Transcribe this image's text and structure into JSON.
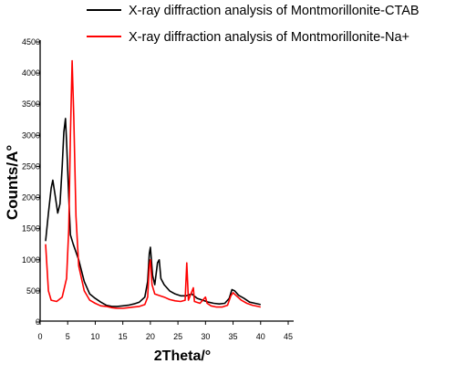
{
  "chart_data": {
    "type": "line",
    "xlabel": "2Theta/°",
    "ylabel": "Counts/A°",
    "xlim": [
      0,
      45
    ],
    "ylim": [
      0,
      4500
    ],
    "x_ticks": [
      0,
      5,
      10,
      15,
      20,
      25,
      30,
      35,
      40,
      45
    ],
    "y_ticks": [
      0,
      500,
      1000,
      1500,
      2000,
      2500,
      3000,
      3500,
      4000,
      4500
    ],
    "grid": false,
    "legend_placement": "top-right",
    "series": [
      {
        "name": "X-ray diffraction analysis of Montmorillonite-CTAB",
        "color": "#000000",
        "points": [
          [
            1.0,
            1300
          ],
          [
            1.5,
            1750
          ],
          [
            2.0,
            2150
          ],
          [
            2.3,
            2280
          ],
          [
            2.7,
            2050
          ],
          [
            3.2,
            1750
          ],
          [
            3.6,
            1900
          ],
          [
            4.0,
            2500
          ],
          [
            4.3,
            3050
          ],
          [
            4.6,
            3270
          ],
          [
            4.8,
            2900
          ],
          [
            5.2,
            2000
          ],
          [
            5.5,
            1400
          ],
          [
            6.0,
            1250
          ],
          [
            7.0,
            1000
          ],
          [
            8.0,
            650
          ],
          [
            9.0,
            450
          ],
          [
            10.0,
            380
          ],
          [
            11.0,
            320
          ],
          [
            12.0,
            270
          ],
          [
            13.0,
            250
          ],
          [
            14.0,
            250
          ],
          [
            15.0,
            260
          ],
          [
            16.0,
            270
          ],
          [
            17.0,
            290
          ],
          [
            18.0,
            320
          ],
          [
            19.0,
            400
          ],
          [
            19.5,
            650
          ],
          [
            19.8,
            1100
          ],
          [
            20.0,
            1200
          ],
          [
            20.4,
            750
          ],
          [
            20.8,
            600
          ],
          [
            21.3,
            950
          ],
          [
            21.6,
            1000
          ],
          [
            21.9,
            700
          ],
          [
            22.5,
            600
          ],
          [
            23.5,
            500
          ],
          [
            24.5,
            450
          ],
          [
            25.5,
            420
          ],
          [
            26.5,
            420
          ],
          [
            27.5,
            450
          ],
          [
            28.5,
            380
          ],
          [
            29.5,
            350
          ],
          [
            30.5,
            320
          ],
          [
            31.5,
            300
          ],
          [
            32.5,
            290
          ],
          [
            33.5,
            300
          ],
          [
            34.3,
            380
          ],
          [
            34.8,
            520
          ],
          [
            35.3,
            500
          ],
          [
            36.0,
            430
          ],
          [
            37.0,
            380
          ],
          [
            38.0,
            320
          ],
          [
            39.0,
            300
          ],
          [
            40.0,
            280
          ]
        ]
      },
      {
        "name": "X-ray diffraction analysis of Montmorillonite-Na+",
        "color": "#ff0000",
        "points": [
          [
            1.0,
            1250
          ],
          [
            1.5,
            500
          ],
          [
            2.0,
            350
          ],
          [
            3.0,
            330
          ],
          [
            4.0,
            400
          ],
          [
            4.8,
            700
          ],
          [
            5.2,
            1500
          ],
          [
            5.5,
            3000
          ],
          [
            5.8,
            4200
          ],
          [
            6.1,
            3300
          ],
          [
            6.5,
            1700
          ],
          [
            7.0,
            900
          ],
          [
            8.0,
            500
          ],
          [
            9.0,
            350
          ],
          [
            10.0,
            300
          ],
          [
            11.0,
            260
          ],
          [
            12.0,
            250
          ],
          [
            13.0,
            230
          ],
          [
            14.0,
            220
          ],
          [
            15.0,
            220
          ],
          [
            16.0,
            230
          ],
          [
            17.0,
            240
          ],
          [
            18.0,
            250
          ],
          [
            19.0,
            280
          ],
          [
            19.5,
            400
          ],
          [
            19.8,
            900
          ],
          [
            20.0,
            1000
          ],
          [
            20.3,
            600
          ],
          [
            20.8,
            450
          ],
          [
            21.5,
            430
          ],
          [
            22.5,
            400
          ],
          [
            23.5,
            360
          ],
          [
            24.5,
            340
          ],
          [
            25.5,
            330
          ],
          [
            26.3,
            350
          ],
          [
            26.6,
            950
          ],
          [
            26.9,
            350
          ],
          [
            27.8,
            550
          ],
          [
            28.0,
            330
          ],
          [
            29.0,
            300
          ],
          [
            30.0,
            400
          ],
          [
            30.3,
            300
          ],
          [
            31.0,
            260
          ],
          [
            32.0,
            240
          ],
          [
            33.0,
            240
          ],
          [
            34.0,
            270
          ],
          [
            34.6,
            420
          ],
          [
            35.0,
            470
          ],
          [
            35.5,
            430
          ],
          [
            36.5,
            350
          ],
          [
            37.5,
            300
          ],
          [
            38.5,
            270
          ],
          [
            39.5,
            250
          ],
          [
            40.0,
            240
          ]
        ]
      }
    ]
  }
}
